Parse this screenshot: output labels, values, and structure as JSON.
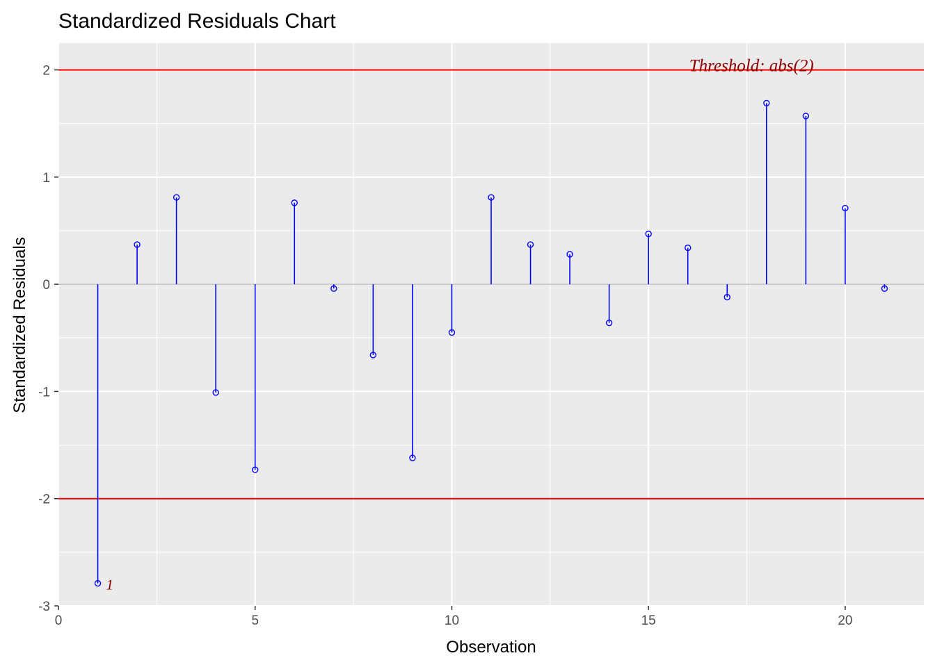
{
  "chart_data": {
    "type": "lollipop",
    "title": "Standardized Residuals Chart",
    "xlabel": "Observation",
    "ylabel": "Standardized Residuals",
    "xlim": [
      0,
      22
    ],
    "ylim": [
      -3,
      2.25
    ],
    "x_ticks": [
      0,
      5,
      10,
      15,
      20
    ],
    "x_tick_labels": [
      "0",
      "5",
      "10",
      "15",
      "20"
    ],
    "y_ticks": [
      -3,
      -2,
      -1,
      0,
      1,
      2
    ],
    "y_tick_labels": [
      "-3",
      "-2",
      "-1",
      "0",
      "1",
      "2"
    ],
    "grid": true,
    "threshold": {
      "value": 2,
      "label": "Threshold: abs(2)",
      "color": "#ff0000"
    },
    "x": [
      1,
      2,
      3,
      4,
      5,
      6,
      7,
      8,
      9,
      10,
      11,
      12,
      13,
      14,
      15,
      16,
      17,
      18,
      19,
      20,
      21
    ],
    "values": [
      -2.79,
      0.37,
      0.81,
      -1.01,
      -1.73,
      0.76,
      -0.04,
      -0.66,
      -1.62,
      -0.45,
      0.81,
      0.37,
      0.28,
      -0.36,
      0.47,
      0.34,
      -0.12,
      1.69,
      1.57,
      0.71,
      -0.04
    ],
    "outliers": [
      {
        "x": 1,
        "label": "1"
      }
    ],
    "colors": {
      "panel": "#ebebeb",
      "grid": "#ffffff",
      "stem": "#0000ff",
      "threshold": "#ff0000",
      "zero_line": "#bebebe",
      "annotation": "#8b0000"
    }
  }
}
